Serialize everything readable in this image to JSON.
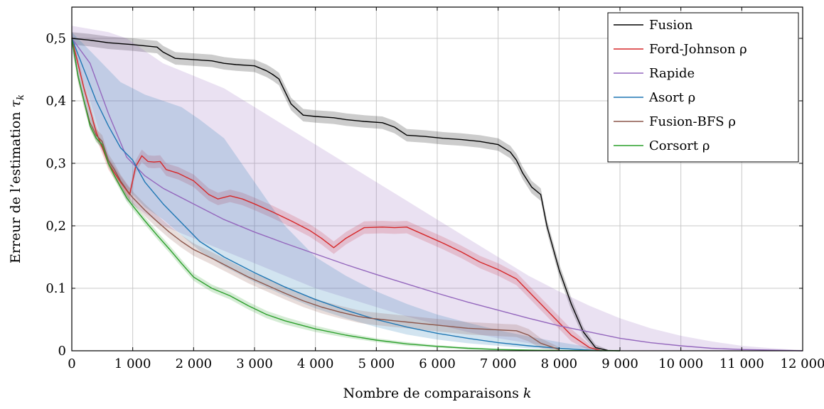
{
  "chart_data": {
    "type": "line",
    "xlabel": "Nombre de comparaisons k",
    "ylabel": "Erreur de l’estimation τk",
    "xlim": [
      0,
      12000
    ],
    "ylim": [
      0,
      0.55
    ],
    "xticks": [
      0,
      1000,
      2000,
      3000,
      4000,
      5000,
      6000,
      7000,
      8000,
      9000,
      10000,
      11000,
      12000
    ],
    "xtick_labels": [
      "0",
      "1 000",
      "2 000",
      "3 000",
      "4 000",
      "5 000",
      "6 000",
      "7 000",
      "8 000",
      "9 000",
      "10 000",
      "11 000",
      "12 000"
    ],
    "yticks": [
      0,
      0.1,
      0.2,
      0.3,
      0.4,
      0.5
    ],
    "ytick_labels": [
      "0",
      "0.1",
      "0,2",
      "0,3",
      "0,4",
      "0,5"
    ],
    "grid": true,
    "legend_position": "top-right",
    "series": [
      {
        "name": "Fusion",
        "color": "#000000",
        "x": [
          0,
          300,
          600,
          1000,
          1400,
          1500,
          1700,
          2000,
          2300,
          2500,
          2700,
          3000,
          3200,
          3300,
          3400,
          3500,
          3600,
          3800,
          4000,
          4300,
          4500,
          4800,
          5100,
          5300,
          5500,
          5800,
          6100,
          6400,
          6700,
          7000,
          7200,
          7300,
          7400,
          7550,
          7700,
          7800,
          8000,
          8200,
          8400,
          8600,
          8800,
          9000
        ],
        "y": [
          0.5,
          0.497,
          0.493,
          0.49,
          0.486,
          0.478,
          0.468,
          0.466,
          0.464,
          0.46,
          0.458,
          0.456,
          0.448,
          0.442,
          0.435,
          0.415,
          0.395,
          0.377,
          0.375,
          0.373,
          0.37,
          0.367,
          0.365,
          0.358,
          0.345,
          0.343,
          0.34,
          0.338,
          0.335,
          0.33,
          0.318,
          0.305,
          0.285,
          0.262,
          0.25,
          0.2,
          0.13,
          0.075,
          0.03,
          0.005,
          0.0005,
          0
        ],
        "band_x": [
          0,
          300,
          600,
          1000,
          1400,
          1500,
          1700,
          2000,
          2300,
          2500,
          2700,
          3000,
          3200,
          3300,
          3400,
          3500,
          3600,
          3800,
          4000,
          4300,
          4500,
          4800,
          5100,
          5300,
          5500,
          5800,
          6100,
          6400,
          6700,
          7000,
          7200,
          7300,
          7400,
          7550,
          7700,
          7800,
          8000,
          8200,
          8400,
          8600,
          8800,
          9000
        ],
        "band_low": [
          0.49,
          0.487,
          0.483,
          0.48,
          0.476,
          0.468,
          0.458,
          0.456,
          0.454,
          0.45,
          0.448,
          0.446,
          0.438,
          0.432,
          0.425,
          0.405,
          0.385,
          0.367,
          0.365,
          0.363,
          0.36,
          0.357,
          0.355,
          0.348,
          0.335,
          0.333,
          0.33,
          0.328,
          0.325,
          0.32,
          0.308,
          0.295,
          0.275,
          0.252,
          0.24,
          0.19,
          0.12,
          0.065,
          0.022,
          0.001,
          0,
          0
        ],
        "band_high": [
          0.51,
          0.507,
          0.503,
          0.5,
          0.496,
          0.488,
          0.478,
          0.476,
          0.474,
          0.47,
          0.468,
          0.466,
          0.458,
          0.452,
          0.445,
          0.425,
          0.405,
          0.387,
          0.385,
          0.383,
          0.38,
          0.377,
          0.375,
          0.368,
          0.355,
          0.353,
          0.35,
          0.348,
          0.345,
          0.34,
          0.328,
          0.315,
          0.295,
          0.272,
          0.26,
          0.21,
          0.14,
          0.085,
          0.038,
          0.01,
          0.002,
          0
        ]
      },
      {
        "name": "Ford-Johnson ρ",
        "color": "#d62728",
        "x": [
          0,
          200,
          400,
          600,
          800,
          950,
          1050,
          1150,
          1250,
          1350,
          1450,
          1550,
          1750,
          2000,
          2250,
          2400,
          2600,
          2800,
          3000,
          3300,
          3600,
          3900,
          4100,
          4300,
          4500,
          4800,
          5100,
          5300,
          5500,
          5800,
          6100,
          6400,
          6700,
          7000,
          7300,
          7600,
          7900,
          8200,
          8500,
          8700
        ],
        "y": [
          0.5,
          0.42,
          0.35,
          0.3,
          0.27,
          0.25,
          0.295,
          0.312,
          0.303,
          0.302,
          0.303,
          0.29,
          0.284,
          0.272,
          0.25,
          0.243,
          0.248,
          0.243,
          0.235,
          0.222,
          0.208,
          0.193,
          0.18,
          0.165,
          0.18,
          0.197,
          0.198,
          0.197,
          0.198,
          0.185,
          0.172,
          0.158,
          0.142,
          0.13,
          0.115,
          0.085,
          0.055,
          0.025,
          0.005,
          0
        ],
        "band_x": [
          0,
          200,
          400,
          600,
          800,
          950,
          1050,
          1150,
          1250,
          1350,
          1450,
          1550,
          1750,
          2000,
          2250,
          2400,
          2600,
          2800,
          3000,
          3300,
          3600,
          3900,
          4100,
          4300,
          4500,
          4800,
          5100,
          5300,
          5500,
          5800,
          6100,
          6400,
          6700,
          7000,
          7300,
          7600,
          7900,
          8200,
          8500,
          8700
        ],
        "band_low": [
          0.49,
          0.41,
          0.34,
          0.29,
          0.26,
          0.24,
          0.285,
          0.302,
          0.293,
          0.292,
          0.293,
          0.28,
          0.274,
          0.262,
          0.24,
          0.233,
          0.238,
          0.233,
          0.225,
          0.212,
          0.198,
          0.183,
          0.17,
          0.155,
          0.17,
          0.187,
          0.188,
          0.187,
          0.188,
          0.175,
          0.162,
          0.148,
          0.132,
          0.12,
          0.105,
          0.075,
          0.045,
          0.015,
          0,
          0
        ],
        "band_high": [
          0.51,
          0.43,
          0.36,
          0.31,
          0.28,
          0.26,
          0.305,
          0.322,
          0.313,
          0.312,
          0.313,
          0.3,
          0.294,
          0.282,
          0.26,
          0.253,
          0.258,
          0.253,
          0.245,
          0.232,
          0.218,
          0.203,
          0.19,
          0.175,
          0.19,
          0.207,
          0.208,
          0.207,
          0.208,
          0.195,
          0.182,
          0.168,
          0.152,
          0.14,
          0.125,
          0.095,
          0.065,
          0.035,
          0.01,
          0
        ]
      },
      {
        "name": "Rapide",
        "color": "#9467bd",
        "x": [
          0,
          300,
          600,
          900,
          1200,
          1500,
          2000,
          2500,
          3000,
          3500,
          4000,
          4500,
          5000,
          5500,
          6000,
          6500,
          7000,
          7500,
          8000,
          8500,
          9000,
          9500,
          10000,
          10500,
          11000,
          11500,
          12000
        ],
        "y": [
          0.5,
          0.46,
          0.38,
          0.31,
          0.28,
          0.26,
          0.235,
          0.21,
          0.19,
          0.172,
          0.155,
          0.138,
          0.122,
          0.107,
          0.092,
          0.078,
          0.065,
          0.052,
          0.04,
          0.03,
          0.02,
          0.013,
          0.008,
          0.004,
          0.002,
          0.001,
          0
        ],
        "band_x": [
          0,
          300,
          600,
          900,
          1200,
          1500,
          2000,
          2500,
          3000,
          3500,
          4000,
          4500,
          5000,
          5500,
          6000,
          6500,
          7000,
          7500,
          8000,
          8500,
          9000,
          9500,
          10000,
          10500,
          11000,
          11500,
          12000
        ],
        "band_low": [
          0.49,
          0.4,
          0.3,
          0.24,
          0.22,
          0.2,
          0.18,
          0.16,
          0.14,
          0.12,
          0.1,
          0.085,
          0.07,
          0.055,
          0.042,
          0.03,
          0.02,
          0.012,
          0.006,
          0.003,
          0.001,
          0,
          0,
          0,
          0,
          0,
          0
        ],
        "band_high": [
          0.52,
          0.515,
          0.51,
          0.5,
          0.48,
          0.46,
          0.44,
          0.42,
          0.39,
          0.36,
          0.33,
          0.3,
          0.27,
          0.24,
          0.21,
          0.18,
          0.15,
          0.12,
          0.095,
          0.072,
          0.052,
          0.036,
          0.024,
          0.015,
          0.008,
          0.004,
          0.001
        ]
      },
      {
        "name": "Asort ρ",
        "color": "#1f77b4",
        "x": [
          0,
          200,
          400,
          600,
          800,
          1000,
          1200,
          1500,
          1800,
          2100,
          2500,
          3000,
          3500,
          4000,
          4500,
          5000,
          5500,
          6000,
          6500,
          7000,
          7500,
          8000,
          8500,
          8700
        ],
        "y": [
          0.5,
          0.45,
          0.4,
          0.36,
          0.325,
          0.305,
          0.27,
          0.235,
          0.205,
          0.175,
          0.15,
          0.125,
          0.102,
          0.082,
          0.065,
          0.05,
          0.038,
          0.028,
          0.02,
          0.013,
          0.008,
          0.004,
          0.001,
          0
        ],
        "band_x": [
          0,
          200,
          400,
          600,
          800,
          1000,
          1200,
          1500,
          1800,
          2100,
          2500,
          3000,
          3500,
          4000,
          4500,
          5000,
          5500,
          6000,
          6500,
          7000,
          7500,
          8000,
          8500,
          8700
        ],
        "band_low": [
          0.48,
          0.4,
          0.34,
          0.3,
          0.27,
          0.25,
          0.23,
          0.21,
          0.185,
          0.16,
          0.135,
          0.11,
          0.088,
          0.068,
          0.052,
          0.038,
          0.026,
          0.018,
          0.012,
          0.008,
          0.004,
          0.002,
          0,
          0
        ],
        "band_high": [
          0.51,
          0.49,
          0.47,
          0.45,
          0.43,
          0.42,
          0.41,
          0.4,
          0.39,
          0.37,
          0.34,
          0.27,
          0.2,
          0.15,
          0.12,
          0.095,
          0.075,
          0.058,
          0.045,
          0.033,
          0.023,
          0.014,
          0.006,
          0
        ]
      },
      {
        "name": "Fusion-BFS ρ",
        "color": "#8c564b",
        "x": [
          0,
          100,
          200,
          300,
          400,
          500,
          600,
          700,
          800,
          900,
          1000,
          1200,
          1400,
          1600,
          1800,
          2000,
          2300,
          2600,
          2900,
          3200,
          3500,
          3800,
          4100,
          4400,
          4700,
          4900,
          5100,
          5300,
          5500,
          5700,
          5900,
          6100,
          6300,
          6500,
          6700,
          6900,
          7100,
          7300,
          7500,
          7700,
          8000
        ],
        "y": [
          0.5,
          0.44,
          0.4,
          0.365,
          0.345,
          0.335,
          0.305,
          0.29,
          0.272,
          0.258,
          0.245,
          0.225,
          0.207,
          0.19,
          0.175,
          0.162,
          0.148,
          0.133,
          0.118,
          0.105,
          0.092,
          0.08,
          0.07,
          0.062,
          0.055,
          0.052,
          0.05,
          0.048,
          0.046,
          0.044,
          0.042,
          0.04,
          0.038,
          0.036,
          0.035,
          0.034,
          0.033,
          0.032,
          0.025,
          0.012,
          0.002
        ],
        "band_x": [
          0,
          100,
          200,
          300,
          400,
          500,
          600,
          700,
          800,
          900,
          1000,
          1200,
          1400,
          1600,
          1800,
          2000,
          2300,
          2600,
          2900,
          3200,
          3500,
          3800,
          4100,
          4400,
          4700,
          4900,
          5100,
          5300,
          5500,
          5700,
          5900,
          6100,
          6300,
          6500,
          6700,
          6900,
          7100,
          7300,
          7500,
          7700,
          8000
        ],
        "band_low": [
          0.49,
          0.43,
          0.39,
          0.355,
          0.335,
          0.325,
          0.295,
          0.28,
          0.262,
          0.248,
          0.235,
          0.215,
          0.197,
          0.18,
          0.165,
          0.152,
          0.138,
          0.123,
          0.108,
          0.095,
          0.082,
          0.07,
          0.06,
          0.052,
          0.045,
          0.042,
          0.04,
          0.038,
          0.036,
          0.034,
          0.032,
          0.03,
          0.028,
          0.026,
          0.025,
          0.024,
          0.023,
          0.022,
          0.015,
          0.004,
          0
        ],
        "band_high": [
          0.51,
          0.45,
          0.41,
          0.375,
          0.355,
          0.345,
          0.315,
          0.3,
          0.282,
          0.268,
          0.255,
          0.235,
          0.217,
          0.2,
          0.185,
          0.172,
          0.158,
          0.143,
          0.128,
          0.115,
          0.102,
          0.09,
          0.08,
          0.072,
          0.065,
          0.062,
          0.06,
          0.058,
          0.056,
          0.054,
          0.052,
          0.05,
          0.048,
          0.046,
          0.045,
          0.044,
          0.043,
          0.042,
          0.035,
          0.02,
          0.006
        ]
      },
      {
        "name": "Corsort ρ",
        "color": "#2ca02c",
        "x": [
          0,
          100,
          200,
          300,
          400,
          500,
          600,
          700,
          800,
          900,
          1000,
          1200,
          1400,
          1600,
          1800,
          2000,
          2300,
          2600,
          2900,
          3200,
          3500,
          4000,
          4500,
          5000,
          5500,
          6000,
          6500,
          7000,
          7500,
          8000,
          8500,
          9000
        ],
        "y": [
          0.5,
          0.44,
          0.4,
          0.36,
          0.34,
          0.33,
          0.3,
          0.28,
          0.262,
          0.245,
          0.232,
          0.208,
          0.185,
          0.163,
          0.14,
          0.118,
          0.1,
          0.088,
          0.072,
          0.058,
          0.048,
          0.035,
          0.025,
          0.017,
          0.011,
          0.007,
          0.004,
          0.002,
          0.001,
          0.0005,
          0.0002,
          0
        ],
        "band_x": [
          0,
          100,
          200,
          300,
          400,
          500,
          600,
          700,
          800,
          900,
          1000,
          1200,
          1400,
          1600,
          1800,
          2000,
          2300,
          2600,
          2900,
          3200,
          3500,
          4000,
          4500,
          5000,
          5500,
          6000,
          6500,
          7000,
          7500,
          8000,
          8500,
          9000
        ],
        "band_low": [
          0.494,
          0.434,
          0.394,
          0.354,
          0.334,
          0.324,
          0.294,
          0.274,
          0.256,
          0.239,
          0.226,
          0.202,
          0.179,
          0.157,
          0.134,
          0.112,
          0.094,
          0.082,
          0.066,
          0.052,
          0.042,
          0.03,
          0.021,
          0.014,
          0.008,
          0.005,
          0.002,
          0.001,
          0,
          0,
          0,
          0
        ],
        "band_high": [
          0.506,
          0.446,
          0.406,
          0.366,
          0.346,
          0.336,
          0.306,
          0.286,
          0.268,
          0.251,
          0.238,
          0.214,
          0.191,
          0.169,
          0.146,
          0.124,
          0.106,
          0.094,
          0.078,
          0.064,
          0.054,
          0.04,
          0.029,
          0.02,
          0.014,
          0.009,
          0.006,
          0.003,
          0.002,
          0.001,
          0.0005,
          0
        ]
      }
    ]
  }
}
